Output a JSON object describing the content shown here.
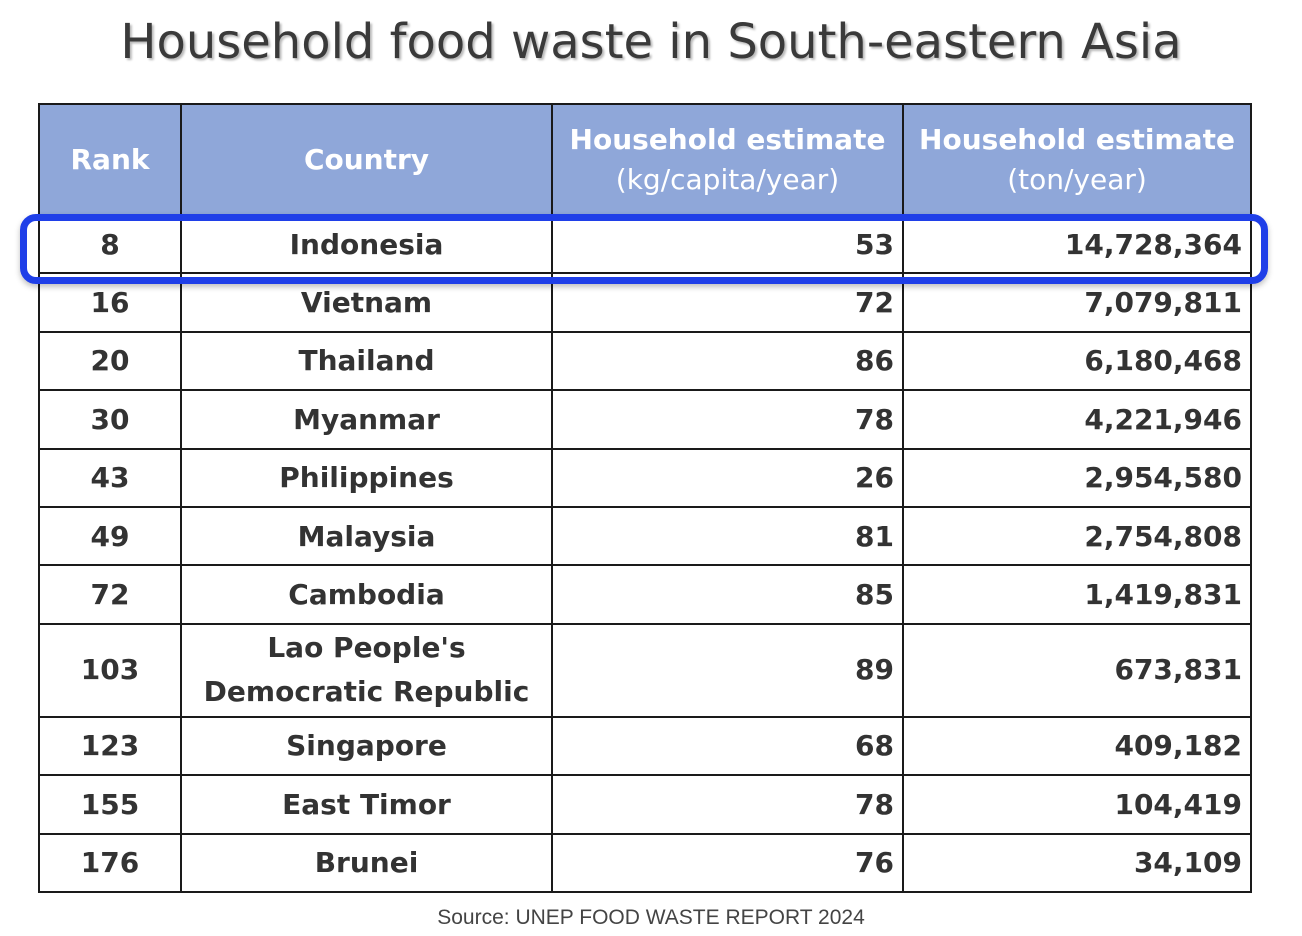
{
  "title": "Household food waste in South-eastern Asia",
  "colors": {
    "header_bg": "#8fa7d9",
    "highlight": "#1f3fe8"
  },
  "headers": {
    "rank": "Rank",
    "country": "Country",
    "kg_line1": "Household estimate",
    "kg_line2": "(kg/capita/year)",
    "ton_line1": "Household estimate",
    "ton_line2": "(ton/year)"
  },
  "rows": [
    {
      "rank": "8",
      "country": "Indonesia",
      "kg": "53",
      "ton": "14,728,364"
    },
    {
      "rank": "16",
      "country": "Vietnam",
      "kg": "72",
      "ton": "7,079,811"
    },
    {
      "rank": "20",
      "country": "Thailand",
      "kg": "86",
      "ton": "6,180,468"
    },
    {
      "rank": "30",
      "country": "Myanmar",
      "kg": "78",
      "ton": "4,221,946"
    },
    {
      "rank": "43",
      "country": "Philippines",
      "kg": "26",
      "ton": "2,954,580"
    },
    {
      "rank": "49",
      "country": "Malaysia",
      "kg": "81",
      "ton": "2,754,808"
    },
    {
      "rank": "72",
      "country": "Cambodia",
      "kg": "85",
      "ton": "1,419,831"
    },
    {
      "rank": "103",
      "country_line1": "Lao People's",
      "country_line2": "Democratic Republic",
      "kg": "89",
      "ton": "673,831"
    },
    {
      "rank": "123",
      "country": "Singapore",
      "kg": "68",
      "ton": "409,182"
    },
    {
      "rank": "155",
      "country": "East Timor",
      "kg": "78",
      "ton": "104,419"
    },
    {
      "rank": "176",
      "country": "Brunei",
      "kg": "76",
      "ton": "34,109"
    }
  ],
  "highlighted_country": "Indonesia",
  "source": "Source: UNEP FOOD WASTE REPORT 2024"
}
